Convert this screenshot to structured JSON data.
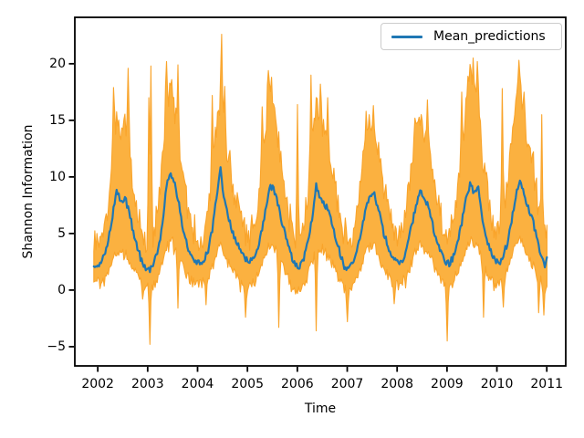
{
  "figure": {
    "background": "#ffffff"
  },
  "chart_data": {
    "type": "line",
    "title": "",
    "xlabel": "Time",
    "ylabel": "Shannon Information",
    "legend": {
      "label": "Mean_predictions",
      "position": "upper right",
      "frame": true
    },
    "x_ticks": [
      2002,
      2003,
      2004,
      2005,
      2006,
      2007,
      2008,
      2009,
      2010,
      2011
    ],
    "y_ticks": [
      -5,
      0,
      5,
      10,
      15,
      20
    ],
    "xlim": [
      2001.54,
      2011.38
    ],
    "ylim": [
      -6.7,
      24.1
    ],
    "grid": false,
    "colors": {
      "mean_line": "#1f77b4",
      "band_fill": "#fbab32",
      "band_edge": "#f9a42b",
      "axis": "#000000",
      "text": "#000000",
      "legend_border": "#cccccc"
    },
    "sampling": {
      "start": 2001.92,
      "end": 2011.0,
      "per_year": 48,
      "mean_jitter": 0.3,
      "upper_jitter": 1.2,
      "lower_jitter": 0.5
    },
    "series": {
      "mean": {
        "name": "Mean_predictions",
        "monthly": {
          "start_year": 2002,
          "lead": [
            2001.92,
            2.0
          ],
          "tail": [
            2011.0,
            2.9
          ],
          "values": [
            2.2,
            3.0,
            4.3,
            6.5,
            9.0,
            7.6,
            8.2,
            6.9,
            5.2,
            3.8,
            2.6,
            1.8,
            1.7,
            2.4,
            3.6,
            5.6,
            9.2,
            10.2,
            9.5,
            7.6,
            5.5,
            4.0,
            3.0,
            2.4,
            2.3,
            2.7,
            3.5,
            5.2,
            8.0,
            10.7,
            7.8,
            6.3,
            5.0,
            4.1,
            3.3,
            2.7,
            2.5,
            2.9,
            3.7,
            5.3,
            7.5,
            9.3,
            8.7,
            7.5,
            5.7,
            4.3,
            3.1,
            2.2,
            2.1,
            2.8,
            4.1,
            6.3,
            9.2,
            8.1,
            7.7,
            6.9,
            5.6,
            4.3,
            3.0,
            1.9,
            1.9,
            2.5,
            3.7,
            5.5,
            7.3,
            8.3,
            8.5,
            7.2,
            5.4,
            4.2,
            3.3,
            2.6,
            2.3,
            2.8,
            3.9,
            5.7,
            7.5,
            8.7,
            8.0,
            7.5,
            5.8,
            4.4,
            3.3,
            2.5,
            2.3,
            2.9,
            4.0,
            5.9,
            7.9,
            9.4,
            8.7,
            9.1,
            6.3,
            4.6,
            3.4,
            2.6,
            2.4,
            3.0,
            4.2,
            6.1,
            8.3,
            9.7,
            8.5,
            7.3,
            6.5,
            4.7,
            3.1,
            2.2
          ]
        }
      },
      "band": {
        "name": "prediction_interval",
        "upper_monthly": {
          "start_year": 2002,
          "lead": [
            2001.92,
            4.0
          ],
          "tail": [
            2011.0,
            5.0
          ],
          "values": [
            4.5,
            5.5,
            7.0,
            12.0,
            15.5,
            13.5,
            14.0,
            12.0,
            9.0,
            7.0,
            5.5,
            4.5,
            4.0,
            5.0,
            7.5,
            11.0,
            16.0,
            18.5,
            16.0,
            13.0,
            10.0,
            7.5,
            6.0,
            4.5,
            4.0,
            5.0,
            6.5,
            10.0,
            14.0,
            17.0,
            13.0,
            11.0,
            9.0,
            7.5,
            6.0,
            5.0,
            4.5,
            5.5,
            7.0,
            11.0,
            15.0,
            17.5,
            15.5,
            13.0,
            10.0,
            7.0,
            5.5,
            4.5,
            5.0,
            6.0,
            8.0,
            12.0,
            16.0,
            15.0,
            14.0,
            12.5,
            10.5,
            8.0,
            6.0,
            4.5,
            4.0,
            5.0,
            7.0,
            10.5,
            13.5,
            15.0,
            14.5,
            12.0,
            9.5,
            7.5,
            6.0,
            5.0,
            4.5,
            5.5,
            7.5,
            11.0,
            14.0,
            15.5,
            13.5,
            12.5,
            10.5,
            8.5,
            6.5,
            5.0,
            4.5,
            6.0,
            8.0,
            12.0,
            16.0,
            19.0,
            17.0,
            16.0,
            12.0,
            9.0,
            6.5,
            5.0,
            5.0,
            6.5,
            9.0,
            13.0,
            17.0,
            18.0,
            15.0,
            13.0,
            11.0,
            8.5,
            6.0,
            4.5
          ]
        },
        "lower_monthly": {
          "start_year": 2002,
          "lead": [
            2001.92,
            0.8
          ],
          "tail": [
            2011.0,
            0.5
          ],
          "values": [
            0.8,
            1.0,
            1.5,
            2.5,
            3.5,
            3.0,
            3.2,
            2.8,
            2.0,
            1.2,
            0.8,
            0.3,
            0.2,
            0.5,
            1.2,
            2.2,
            3.8,
            4.5,
            4.0,
            3.0,
            2.0,
            1.2,
            0.8,
            0.5,
            0.5,
            0.8,
            1.2,
            2.0,
            3.2,
            4.2,
            3.2,
            2.5,
            1.8,
            1.2,
            0.8,
            0.4,
            0.5,
            0.8,
            1.4,
            2.2,
            3.4,
            4.2,
            3.8,
            3.0,
            2.2,
            1.4,
            0.6,
            0.0,
            0.2,
            0.6,
            1.5,
            2.8,
            4.0,
            3.8,
            3.4,
            2.8,
            2.2,
            1.4,
            0.6,
            0.0,
            0.0,
            0.5,
            1.2,
            2.2,
            3.2,
            3.8,
            3.8,
            3.0,
            2.2,
            1.5,
            0.9,
            0.5,
            0.5,
            0.8,
            1.5,
            2.5,
            3.5,
            4.0,
            3.6,
            3.2,
            2.4,
            1.6,
            1.0,
            0.5,
            0.3,
            0.8,
            1.6,
            2.6,
            3.8,
            4.4,
            4.0,
            3.8,
            2.6,
            1.6,
            1.0,
            0.5,
            0.5,
            1.0,
            1.6,
            2.8,
            4.0,
            4.4,
            3.8,
            3.0,
            2.4,
            1.6,
            0.8,
            0.2
          ]
        },
        "spikes_up": [
          [
            2002.31,
            17.9
          ],
          [
            2002.6,
            19.6
          ],
          [
            2003.02,
            17.0
          ],
          [
            2003.07,
            19.8
          ],
          [
            2003.38,
            20.2
          ],
          [
            2003.48,
            18.6
          ],
          [
            2003.6,
            19.9
          ],
          [
            2004.3,
            17.2
          ],
          [
            2004.48,
            22.6
          ],
          [
            2004.54,
            18.0
          ],
          [
            2005.3,
            16.2
          ],
          [
            2005.42,
            19.4
          ],
          [
            2005.48,
            18.8
          ],
          [
            2006.0,
            16.4
          ],
          [
            2006.28,
            19.0
          ],
          [
            2006.46,
            18.2
          ],
          [
            2006.6,
            17.0
          ],
          [
            2007.38,
            15.8
          ],
          [
            2007.52,
            16.3
          ],
          [
            2008.35,
            15.2
          ],
          [
            2008.6,
            16.8
          ],
          [
            2009.3,
            17.5
          ],
          [
            2009.42,
            18.9
          ],
          [
            2009.52,
            20.5
          ],
          [
            2009.6,
            20.2
          ],
          [
            2010.1,
            17.8
          ],
          [
            2010.44,
            20.3
          ],
          [
            2010.55,
            17.5
          ],
          [
            2010.9,
            15.5
          ]
        ],
        "spikes_down": [
          [
            2002.9,
            -0.8
          ],
          [
            2003.04,
            -4.8
          ],
          [
            2003.6,
            -1.6
          ],
          [
            2004.16,
            -1.3
          ],
          [
            2004.97,
            -2.4
          ],
          [
            2005.62,
            -3.3
          ],
          [
            2006.38,
            -3.6
          ],
          [
            2007.0,
            -2.8
          ],
          [
            2007.95,
            -1.2
          ],
          [
            2009.0,
            -4.5
          ],
          [
            2009.73,
            -2.4
          ],
          [
            2010.12,
            -1.5
          ],
          [
            2010.83,
            -2.0
          ],
          [
            2010.94,
            -2.2
          ]
        ]
      }
    }
  }
}
